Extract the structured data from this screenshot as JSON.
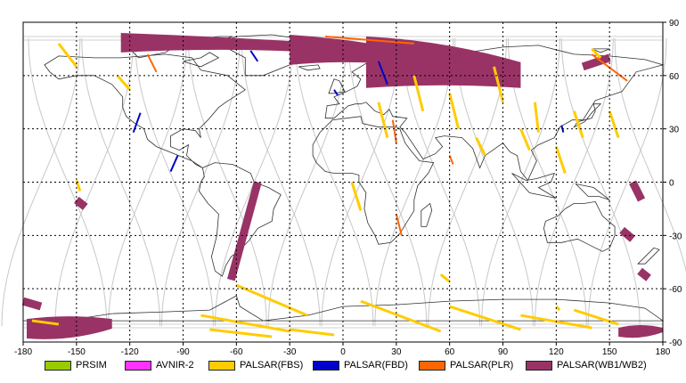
{
  "chart_data": {
    "type": "map",
    "projection": "equirectangular",
    "xlim": [
      -180,
      180
    ],
    "ylim": [
      -90,
      90
    ],
    "x_ticks": [
      -180,
      -150,
      -120,
      -90,
      -60,
      -30,
      0,
      30,
      60,
      90,
      120,
      150,
      180
    ],
    "y_ticks": [
      90,
      60,
      30,
      0,
      -30,
      -60,
      -90
    ],
    "grid": true,
    "legend": [
      {
        "label": "PRSIM",
        "color": "#99cc00"
      },
      {
        "label": "AVNIR-2",
        "color": "#ff33ff"
      },
      {
        "label": "PALSAR(FBS)",
        "color": "#ffcc00"
      },
      {
        "label": "PALSAR(FBD)",
        "color": "#0000cc"
      },
      {
        "label": "PALSAR(PLR)",
        "color": "#ff6600"
      },
      {
        "label": "PALSAR(WB1/WB2)",
        "color": "#993366"
      }
    ],
    "coverage": {
      "wb": [
        {
          "lon": -125,
          "lat": 73,
          "lon2": -15,
          "lat2": 84
        },
        {
          "lon": -30,
          "lat": 66,
          "lon2": 35,
          "lat2": 83
        },
        {
          "lon": 13,
          "lat": 53,
          "lon2": 100,
          "lat2": 82
        },
        {
          "lon": 135,
          "lat": 65,
          "lon2": 150,
          "lat2": 70
        },
        {
          "lon": -48,
          "lat": 0,
          "lon2": -63,
          "lat2": -55
        },
        {
          "lon": 163,
          "lat": 0,
          "lon2": 168,
          "lat2": -10
        },
        {
          "lon": -178,
          "lat": -77,
          "lon2": -130,
          "lat2": -88
        },
        {
          "lon": -180,
          "lat": -67,
          "lon2": -170,
          "lat2": -70
        },
        {
          "lon": 155,
          "lat": -82,
          "lon2": 180,
          "lat2": -87
        },
        {
          "lon": -150,
          "lat": -10,
          "lon2": -145,
          "lat2": -14
        },
        {
          "lon": 157,
          "lat": -27,
          "lon2": 163,
          "lat2": -32
        },
        {
          "lon": 167,
          "lat": -50,
          "lon2": 172,
          "lat2": -54
        }
      ],
      "fbs": [
        {
          "lon": -160,
          "lat": 78,
          "lon2": -150,
          "lat2": 65
        },
        {
          "lon": -127,
          "lat": 60,
          "lon2": -120,
          "lat2": 52
        },
        {
          "lon": -150,
          "lat": 1,
          "lon2": -148,
          "lat2": -5
        },
        {
          "lon": -60,
          "lat": -58,
          "lon2": -20,
          "lat2": -75
        },
        {
          "lon": -80,
          "lat": -75,
          "lon2": -30,
          "lat2": -84
        },
        {
          "lon": -75,
          "lat": -83,
          "lon2": -40,
          "lat2": -87
        },
        {
          "lon": -30,
          "lat": -83,
          "lon2": -5,
          "lat2": -86
        },
        {
          "lon": 5,
          "lat": 0,
          "lon2": 10,
          "lat2": -16
        },
        {
          "lon": 20,
          "lat": 45,
          "lon2": 25,
          "lat2": 25
        },
        {
          "lon": 40,
          "lat": 60,
          "lon2": 45,
          "lat2": 40
        },
        {
          "lon": 60,
          "lat": 50,
          "lon2": 65,
          "lat2": 30
        },
        {
          "lon": 75,
          "lat": 25,
          "lon2": 80,
          "lat2": 15
        },
        {
          "lon": 85,
          "lat": 65,
          "lon2": 90,
          "lat2": 45
        },
        {
          "lon": 100,
          "lat": 30,
          "lon2": 105,
          "lat2": 18
        },
        {
          "lon": 108,
          "lat": 45,
          "lon2": 110,
          "lat2": 28
        },
        {
          "lon": 120,
          "lat": 20,
          "lon2": 125,
          "lat2": 5
        },
        {
          "lon": 130,
          "lat": 40,
          "lon2": 135,
          "lat2": 25
        },
        {
          "lon": 140,
          "lat": 75,
          "lon2": 145,
          "lat2": 70
        },
        {
          "lon": 150,
          "lat": 40,
          "lon2": 155,
          "lat2": 25
        },
        {
          "lon": 10,
          "lat": -67,
          "lon2": 55,
          "lat2": -84
        },
        {
          "lon": 60,
          "lat": -70,
          "lon2": 100,
          "lat2": -83
        },
        {
          "lon": 100,
          "lat": -75,
          "lon2": 140,
          "lat2": -82
        },
        {
          "lon": 130,
          "lat": -72,
          "lon2": 155,
          "lat2": -80
        },
        {
          "lon": -175,
          "lat": -78,
          "lon2": -160,
          "lat2": -80
        },
        {
          "lon": 55,
          "lat": -52,
          "lon2": 60,
          "lat2": -56
        },
        {
          "lon": 120,
          "lat": -70,
          "lon2": 122,
          "lat2": -72
        }
      ],
      "fbd": [
        {
          "lon": -114,
          "lat": 39,
          "lon2": -118,
          "lat2": 28
        },
        {
          "lon": -93,
          "lat": 15,
          "lon2": -97,
          "lat2": 6
        },
        {
          "lon": -52,
          "lat": 74,
          "lon2": -48,
          "lat2": 68
        },
        {
          "lon": -5,
          "lat": 52,
          "lon2": -3,
          "lat2": 49
        },
        {
          "lon": 20,
          "lat": 68,
          "lon2": 25,
          "lat2": 55
        },
        {
          "lon": 123,
          "lat": 32,
          "lon2": 124,
          "lat2": 28
        }
      ],
      "plr": [
        {
          "lon": -110,
          "lat": 72,
          "lon2": -105,
          "lat2": 62
        },
        {
          "lon": -10,
          "lat": 82,
          "lon2": 40,
          "lat2": 78
        },
        {
          "lon": 140,
          "lat": 72,
          "lon2": 160,
          "lat2": 57
        },
        {
          "lon": 28,
          "lat": 35,
          "lon2": 30,
          "lat2": 22
        },
        {
          "lon": 30,
          "lat": -18,
          "lon2": 33,
          "lat2": -30
        },
        {
          "lon": 60,
          "lat": 15,
          "lon2": 62,
          "lat2": 10
        }
      ]
    }
  }
}
